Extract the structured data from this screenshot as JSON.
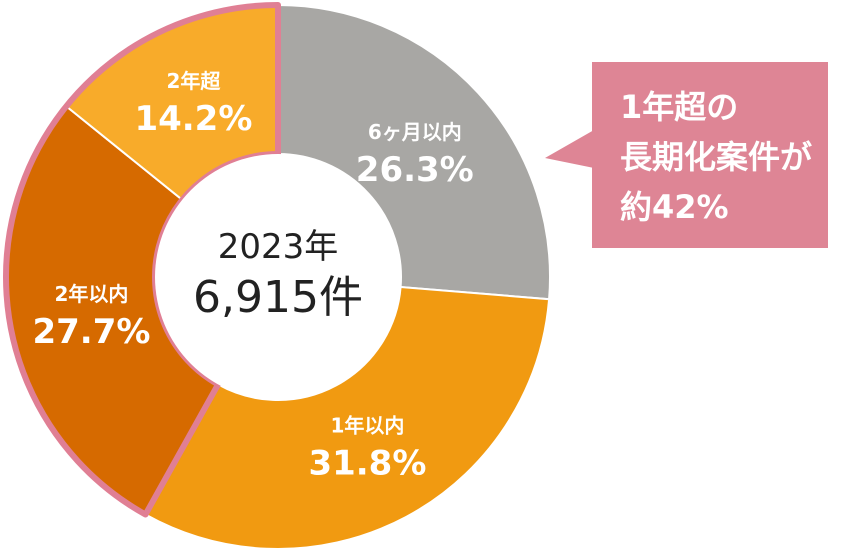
{
  "chart_data": {
    "type": "pie",
    "donut": true,
    "center_label": {
      "year": "2023年",
      "count": "6,915件"
    },
    "slices": [
      {
        "label": "6ヶ月以内",
        "value": 26.3,
        "display": "26.3%",
        "color": "#a8a7a4",
        "highlighted": false
      },
      {
        "label": "1年以内",
        "value": 31.8,
        "display": "31.8%",
        "color": "#f19a11",
        "highlighted": false
      },
      {
        "label": "2年以内",
        "value": 27.7,
        "display": "27.7%",
        "color": "#d66a00",
        "highlighted": true
      },
      {
        "label": "2年超",
        "value": 14.2,
        "display": "14.2%",
        "color": "#f8ab2a",
        "highlighted": true
      }
    ],
    "highlight_color": "#e07f94",
    "callout": {
      "lines": [
        "1年超の",
        "長期化案件が",
        "約42%"
      ],
      "color": "#de8595"
    }
  }
}
